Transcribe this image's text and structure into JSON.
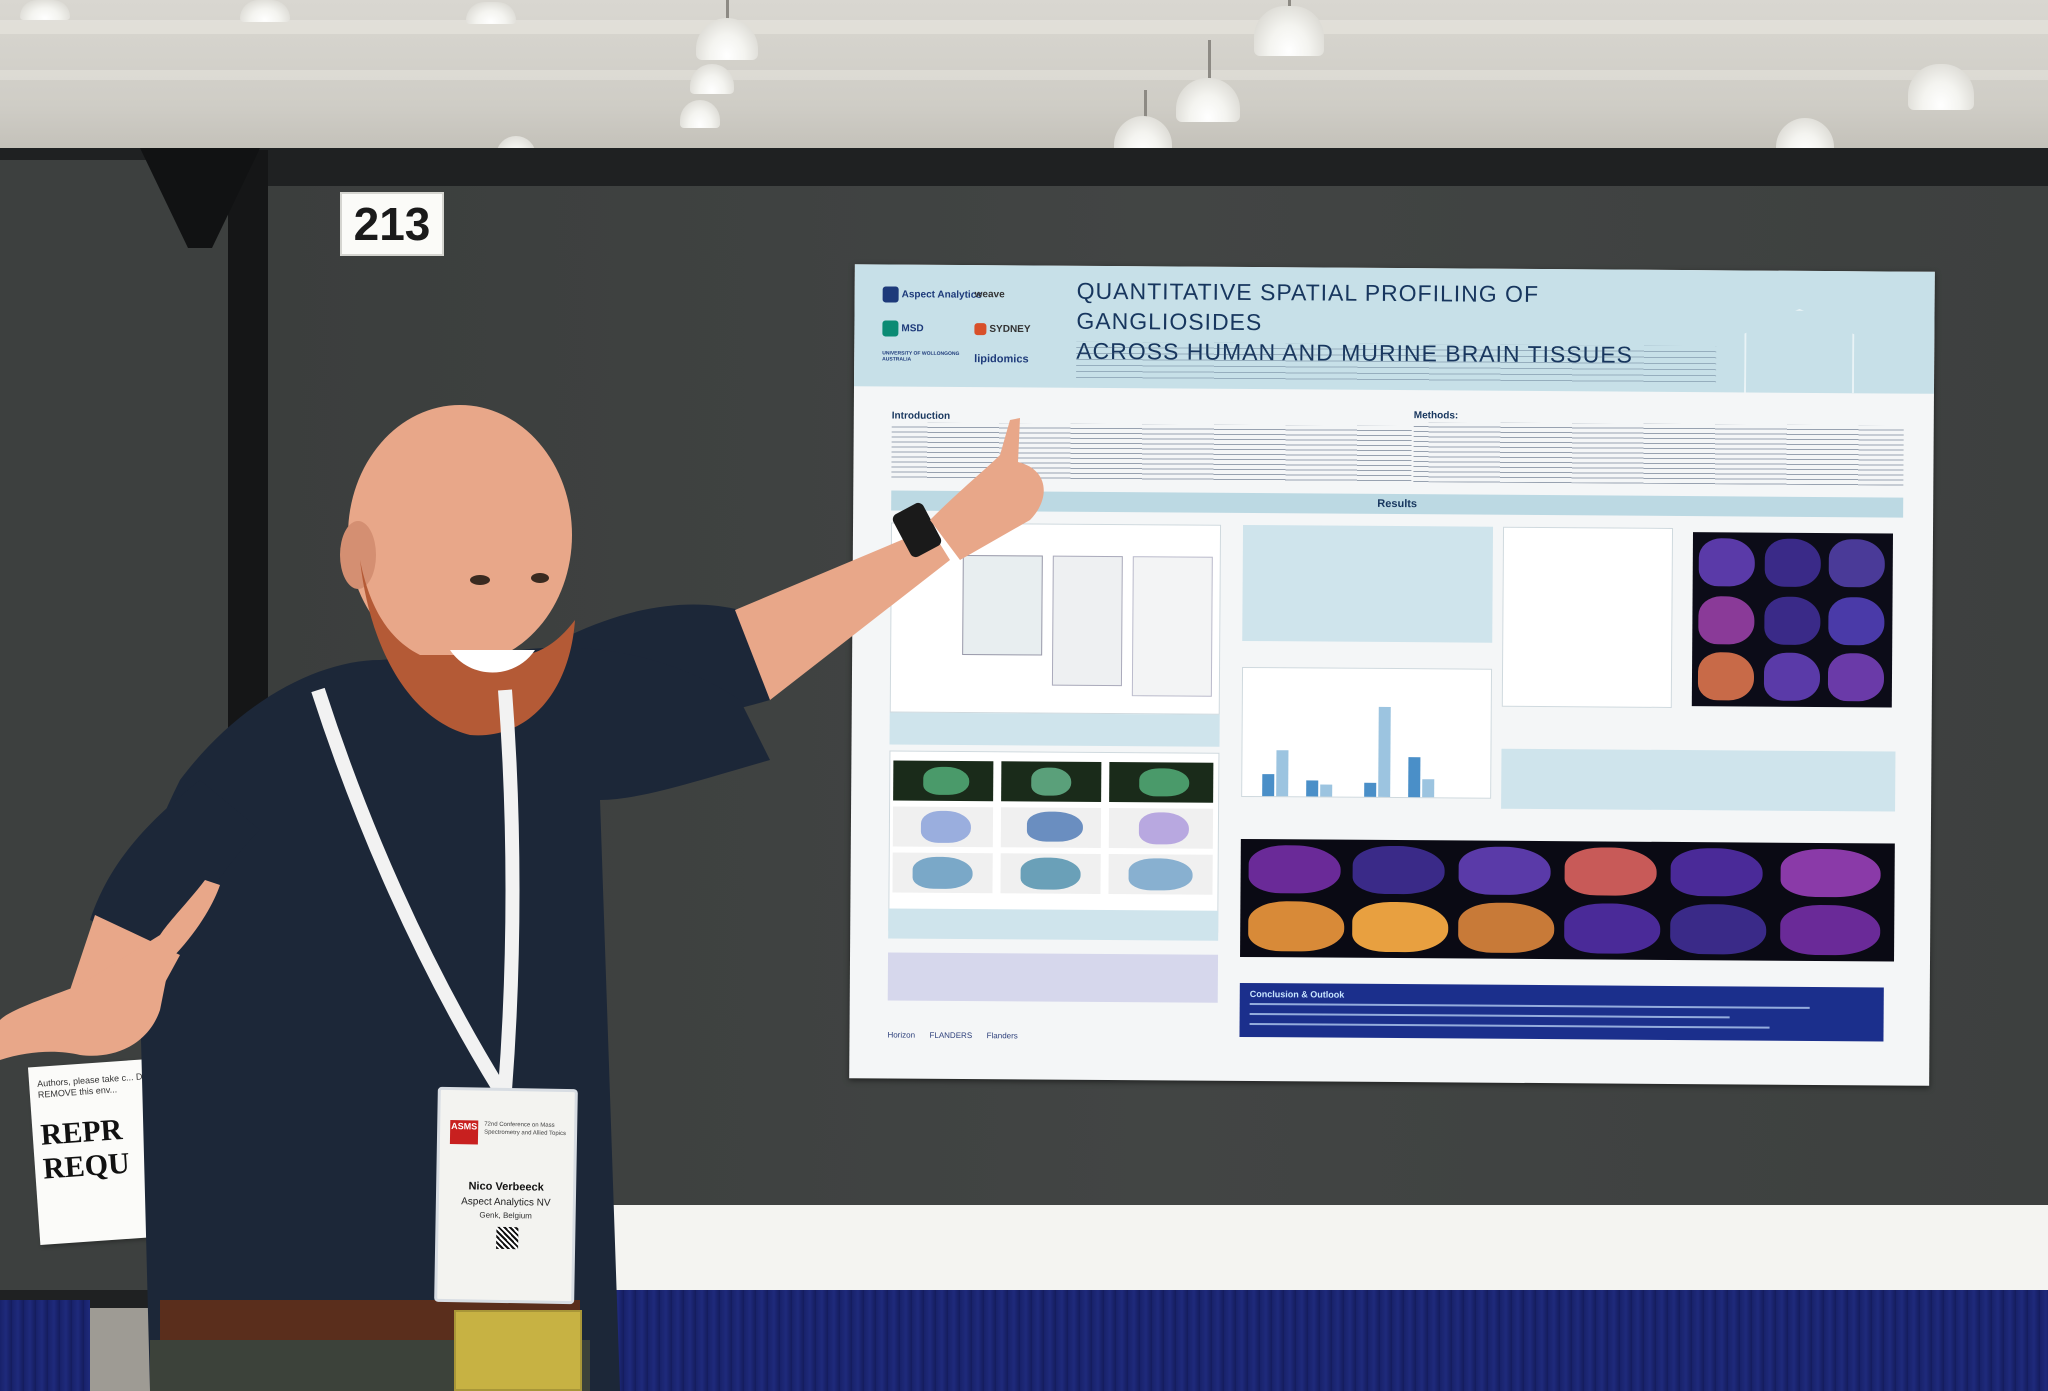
{
  "scene": {
    "booth_number": "213",
    "reprint_sign": {
      "small_text": "Authors, please take c... DO NOT REMOVE this env...",
      "big_line1": "REPR",
      "big_line2": "REQU"
    }
  },
  "poster": {
    "title_line1": "QUANTITATIVE SPATIAL PROFILING OF GANGLIOSIDES",
    "title_line2": "ACROSS HUMAN AND MURINE BRAIN TISSUES",
    "logos": [
      "Aspect Analytics",
      "weave",
      "MSD",
      "SYDNEY",
      "UNIVERSITY OF WOLLONGONG AUSTRALIA",
      "lipidomics"
    ],
    "sections": {
      "introduction": "Introduction",
      "methods": "Methods:",
      "results": "Results",
      "conclusion": "Conclusion & Outlook"
    },
    "funders": [
      "Horizon",
      "FLANDERS",
      "Flanders"
    ]
  },
  "badge": {
    "logo": "ASMS",
    "conference": "72nd Conference on Mass Spectrometry and Allied Topics",
    "name": "Nico Verbeeck",
    "organization": "Aspect Analytics NV",
    "location": "Genk, Belgium"
  },
  "colors": {
    "board": "#3d403f",
    "poster_header": "#c7e0e8",
    "poster_title": "#17365e",
    "conclusion_bar": "#1b2f8c",
    "table_skirt": "#1f2a7c"
  }
}
